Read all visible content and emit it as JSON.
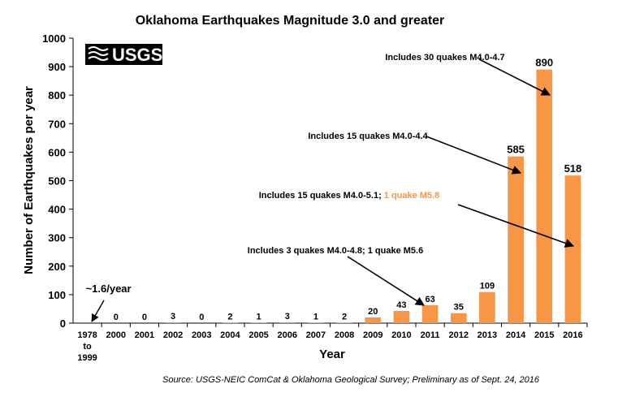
{
  "chart_data": {
    "type": "bar",
    "title": "Oklahoma Earthquakes Magnitude 3.0 and greater",
    "xlabel": "Year",
    "ylabel": "Number of Earthquakes per year",
    "ylim": [
      0,
      1000
    ],
    "yticks": [
      "0",
      "100",
      "200",
      "300",
      "400",
      "500",
      "600",
      "700",
      "800",
      "900",
      "1000"
    ],
    "categories": [
      "1978 to 1999",
      "2000",
      "2001",
      "2002",
      "2003",
      "2004",
      "2005",
      "2006",
      "2007",
      "2008",
      "2009",
      "2010",
      "2011",
      "2012",
      "2013",
      "2014",
      "2015",
      "2016"
    ],
    "category_lines": [
      [
        "1978",
        "to",
        "1999"
      ],
      [
        "2000"
      ],
      [
        "2001"
      ],
      [
        "2002"
      ],
      [
        "2003"
      ],
      [
        "2004"
      ],
      [
        "2005"
      ],
      [
        "2006"
      ],
      [
        "2007"
      ],
      [
        "2008"
      ],
      [
        "2009"
      ],
      [
        "2010"
      ],
      [
        "2011"
      ],
      [
        "2012"
      ],
      [
        "2013"
      ],
      [
        "2014"
      ],
      [
        "2015"
      ],
      [
        "2016"
      ]
    ],
    "values": [
      1.6,
      0,
      0,
      3,
      0,
      2,
      1,
      3,
      1,
      2,
      20,
      43,
      63,
      35,
      109,
      585,
      890,
      518
    ],
    "data_labels": [
      "~1.6/year",
      "0",
      "0",
      "3",
      "0",
      "2",
      "1",
      "3",
      "1",
      "2",
      "20",
      "43",
      "63",
      "35",
      "109",
      "585",
      "890",
      "518"
    ],
    "bar_color": "#f79646",
    "grid": false,
    "annotations": [
      {
        "text": "Includes 30 quakes M4.0-4.7",
        "highlight": "",
        "target": "2015"
      },
      {
        "text": "Includes 15 quakes M4.0-4.4",
        "highlight": "",
        "target": "2014"
      },
      {
        "text": "Includes 15 quakes M4.0-5.1; ",
        "highlight": "1 quake M5.8",
        "target": "2016"
      },
      {
        "text": "Includes 3 quakes M4.0-4.8; 1 quake M5.6",
        "highlight": "",
        "target": "2011"
      }
    ],
    "source": "Source: USGS-NEIC ComCat & Oklahoma Geological Survey; Preliminary as of Sept. 24, 2016"
  },
  "logo": {
    "text": "USGS"
  }
}
